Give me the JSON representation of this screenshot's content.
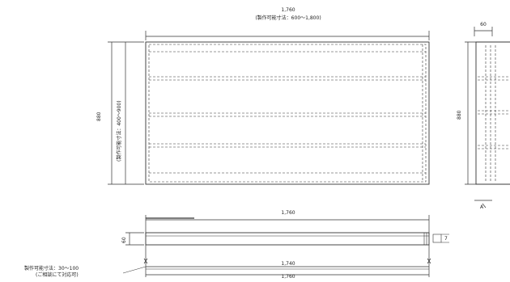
{
  "front_view": {
    "top_dim": "1,760",
    "top_note": "(製作可能寸法：600〜1,800)",
    "height_dim": "880",
    "height_note": "(製作可能寸法：400〜900)"
  },
  "side_view": {
    "thickness_dim": "60",
    "height_dim": "880",
    "detail_mark": "A"
  },
  "plan_view": {
    "width_dim": "1,760",
    "depth_dim": "60",
    "inner_dim_1": "1,740",
    "inner_dim_2": "1,760",
    "small_dim": "7",
    "note_line1": "製作可能寸法：30〜100",
    "note_line2": "(ご相談にて対応可)"
  }
}
